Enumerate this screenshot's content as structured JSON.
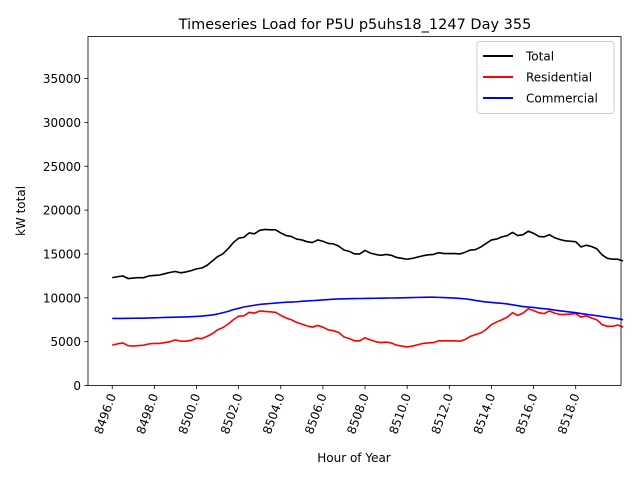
{
  "chart_data": {
    "type": "line",
    "title": "Timeseries Load for P5U p5uhs18_1247  Day 355",
    "xlabel": "Hour of Year",
    "ylabel": "kW total",
    "xlim": [
      8494.85,
      8520.15
    ],
    "ylim": [
      0,
      39800
    ],
    "x_ticks": [
      8496,
      8498,
      8500,
      8502,
      8504,
      8506,
      8508,
      8510,
      8512,
      8514,
      8516,
      8518
    ],
    "x_tick_labels": [
      "8496.0",
      "8498.0",
      "8500.0",
      "8502.0",
      "8504.0",
      "8506.0",
      "8508.0",
      "8510.0",
      "8512.0",
      "8514.0",
      "8516.0",
      "8518.0"
    ],
    "y_ticks": [
      0,
      5000,
      10000,
      15000,
      20000,
      25000,
      30000,
      35000
    ],
    "y_tick_labels": [
      "0",
      "5000",
      "10000",
      "15000",
      "20000",
      "25000",
      "30000",
      "35000"
    ],
    "legend_position": "upper right",
    "x_start": 8496.0,
    "x_step": 0.25,
    "series": [
      {
        "name": "Total",
        "color": "#000000",
        "values": [
          12300,
          12400,
          12500,
          12200,
          12250,
          12300,
          12300,
          12500,
          12550,
          12600,
          12750,
          12900,
          13000,
          12850,
          12950,
          13100,
          13300,
          13400,
          13700,
          14200,
          14700,
          15000,
          15600,
          16300,
          16800,
          16900,
          17400,
          17300,
          17700,
          17800,
          17750,
          17750,
          17400,
          17100,
          17000,
          16700,
          16600,
          16400,
          16300,
          16600,
          16450,
          16200,
          16150,
          15900,
          15450,
          15300,
          15000,
          15000,
          15400,
          15100,
          14950,
          14850,
          14950,
          14850,
          14600,
          14500,
          14400,
          14500,
          14650,
          14800,
          14900,
          14950,
          15150,
          15050,
          15050,
          15050,
          15000,
          15200,
          15450,
          15500,
          15800,
          16200,
          16600,
          16700,
          16950,
          17100,
          17450,
          17100,
          17200,
          17600,
          17350,
          17000,
          16950,
          17200,
          16850,
          16650,
          16500,
          16450,
          16400,
          15800,
          16000,
          15850,
          15600,
          14900,
          14500,
          14400,
          14400,
          14200
        ]
      },
      {
        "name": "Residential",
        "color": "#ff0000",
        "values": [
          4600,
          4750,
          4850,
          4550,
          4500,
          4550,
          4600,
          4750,
          4800,
          4800,
          4900,
          5000,
          5200,
          5050,
          5050,
          5150,
          5400,
          5350,
          5600,
          5900,
          6350,
          6600,
          7000,
          7500,
          7900,
          7950,
          8350,
          8250,
          8500,
          8450,
          8400,
          8350,
          8000,
          7700,
          7500,
          7200,
          7000,
          6800,
          6650,
          6850,
          6650,
          6350,
          6250,
          6050,
          5550,
          5350,
          5100,
          5100,
          5450,
          5200,
          5000,
          4900,
          4950,
          4850,
          4600,
          4500,
          4400,
          4500,
          4650,
          4800,
          4850,
          4900,
          5100,
          5100,
          5100,
          5100,
          5050,
          5250,
          5600,
          5800,
          6000,
          6400,
          6950,
          7250,
          7500,
          7800,
          8300,
          8000,
          8250,
          8750,
          8550,
          8300,
          8200,
          8500,
          8250,
          8100,
          8100,
          8150,
          8200,
          7800,
          7950,
          7700,
          7500,
          6950,
          6750,
          6750,
          6900,
          6650
        ]
      },
      {
        "name": "Commercial",
        "color": "#0000ff",
        "values": [
          7650,
          7650,
          7650,
          7660,
          7670,
          7680,
          7680,
          7700,
          7720,
          7740,
          7760,
          7780,
          7790,
          7800,
          7820,
          7850,
          7880,
          7920,
          7980,
          8050,
          8150,
          8300,
          8450,
          8650,
          8800,
          8950,
          9050,
          9150,
          9250,
          9300,
          9350,
          9400,
          9450,
          9500,
          9520,
          9550,
          9600,
          9640,
          9680,
          9720,
          9760,
          9800,
          9840,
          9870,
          9890,
          9900,
          9910,
          9920,
          9930,
          9940,
          9950,
          9960,
          9970,
          9980,
          9990,
          10000,
          10010,
          10030,
          10050,
          10060,
          10070,
          10070,
          10050,
          10030,
          10000,
          9970,
          9930,
          9880,
          9800,
          9700,
          9600,
          9530,
          9470,
          9420,
          9370,
          9300,
          9200,
          9100,
          9000,
          8950,
          8900,
          8820,
          8760,
          8700,
          8600,
          8520,
          8450,
          8370,
          8300,
          8200,
          8120,
          8040,
          7960,
          7870,
          7780,
          7700,
          7620,
          7500
        ]
      }
    ]
  }
}
